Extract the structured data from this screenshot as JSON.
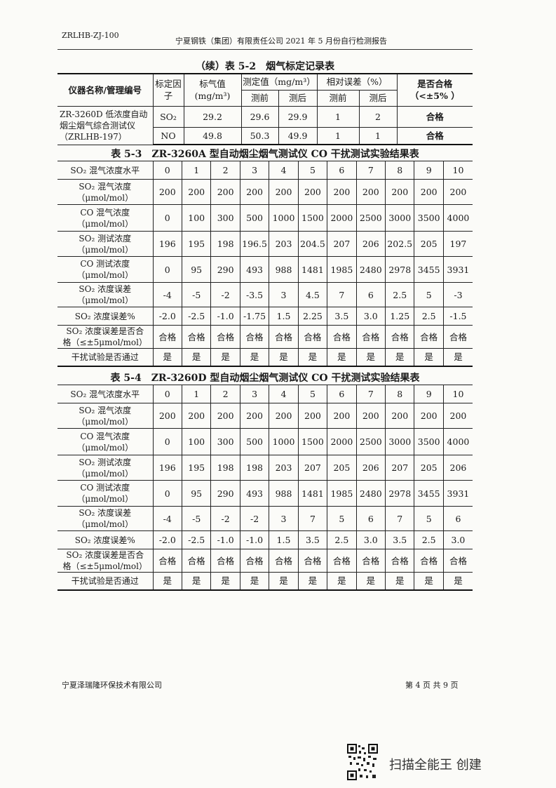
{
  "header": {
    "code": "ZRLHB-ZJ-100",
    "title": "宁夏钢铁（集团）有限责任公司 2021 年 5 月份自行检测报告"
  },
  "table52": {
    "title": "（续）表 5-2　烟气标定记录表",
    "headers": {
      "name": "仪器名称/管理编号",
      "factor": "标定因子",
      "std": "标气值",
      "std_unit": "(mg/m³)",
      "measured": "测定值（mg/m³）",
      "rel_err": "相对误差（%）",
      "pass": "是否合格",
      "pass_crit": "（<±5% ）",
      "before": "测前",
      "after": "测后"
    },
    "instrument": "ZR-3260D 低浓度自动烟尘烟气综合测试仪（ZRLHB-197）",
    "rows": [
      {
        "factor": "SO₂",
        "std": "29.2",
        "before": "29.6",
        "after": "29.9",
        "err_before": "1",
        "err_after": "2",
        "pass": "合格"
      },
      {
        "factor": "NO",
        "std": "49.8",
        "before": "50.3",
        "after": "49.9",
        "err_before": "1",
        "err_after": "1",
        "pass": "合格"
      }
    ]
  },
  "table53": {
    "title": "表 5-3　ZR-3260A 型自动烟尘烟气测试仪 CO 干扰测试实验结果表",
    "rows": [
      {
        "l1": "SO₂ 混气浓度水平",
        "l2": "",
        "values": [
          "0",
          "1",
          "2",
          "3",
          "4",
          "5",
          "6",
          "7",
          "8",
          "9",
          "10"
        ]
      },
      {
        "l1": "SO₂ 混气浓度",
        "l2": "（μmol/mol）",
        "values": [
          "200",
          "200",
          "200",
          "200",
          "200",
          "200",
          "200",
          "200",
          "200",
          "200",
          "200"
        ]
      },
      {
        "l1": "CO 混气浓度",
        "l2": "（μmol/mol）",
        "values": [
          "0",
          "100",
          "300",
          "500",
          "1000",
          "1500",
          "2000",
          "2500",
          "3000",
          "3500",
          "4000"
        ]
      },
      {
        "l1": "SO₂ 测试浓度",
        "l2": "（μmol/mol）",
        "values": [
          "196",
          "195",
          "198",
          "196.5",
          "203",
          "204.5",
          "207",
          "206",
          "202.5",
          "205",
          "197"
        ]
      },
      {
        "l1": "CO 测试浓度",
        "l2": "（μmol/mol）",
        "values": [
          "0",
          "95",
          "290",
          "493",
          "988",
          "1481",
          "1985",
          "2480",
          "2978",
          "3455",
          "3931"
        ]
      },
      {
        "l1": "SO₂ 浓度误差",
        "l2": "（μmol/mol）",
        "values": [
          "-4",
          "-5",
          "-2",
          "-3.5",
          "3",
          "4.5",
          "7",
          "6",
          "2.5",
          "5",
          "-3"
        ]
      },
      {
        "l1": "SO₂ 浓度误差%",
        "l2": "",
        "values": [
          "-2.0",
          "-2.5",
          "-1.0",
          "-1.75",
          "1.5",
          "2.25",
          "3.5",
          "3.0",
          "1.25",
          "2.5",
          "-1.5"
        ]
      },
      {
        "l1": "SO₂ 浓度误差是否合",
        "l2": "格（≤±5μmol/mol）",
        "values": [
          "合格",
          "合格",
          "合格",
          "合格",
          "合格",
          "合格",
          "合格",
          "合格",
          "合格",
          "合格",
          "合格"
        ]
      },
      {
        "l1": "干扰试验是否通过",
        "l2": "",
        "values": [
          "是",
          "是",
          "是",
          "是",
          "是",
          "是",
          "是",
          "是",
          "是",
          "是",
          "是"
        ]
      }
    ]
  },
  "table54": {
    "title": "表 5-4　ZR-3260D 型自动烟尘烟气测试仪 CO 干扰测试实验结果表",
    "rows": [
      {
        "l1": "SO₂ 混气浓度水平",
        "l2": "",
        "values": [
          "0",
          "1",
          "2",
          "3",
          "4",
          "5",
          "6",
          "7",
          "8",
          "9",
          "10"
        ]
      },
      {
        "l1": "SO₂ 混气浓度",
        "l2": "（μmol/mol）",
        "values": [
          "200",
          "200",
          "200",
          "200",
          "200",
          "200",
          "200",
          "200",
          "200",
          "200",
          "200"
        ]
      },
      {
        "l1": "CO 混气浓度",
        "l2": "（μmol/mol）",
        "values": [
          "0",
          "100",
          "300",
          "500",
          "1000",
          "1500",
          "2000",
          "2500",
          "3000",
          "3500",
          "4000"
        ]
      },
      {
        "l1": "SO₂ 测试浓度",
        "l2": "（μmol/mol）",
        "values": [
          "196",
          "195",
          "198",
          "198",
          "203",
          "207",
          "205",
          "206",
          "207",
          "205",
          "206"
        ]
      },
      {
        "l1": "CO 测试浓度",
        "l2": "（μmol/mol）",
        "values": [
          "0",
          "95",
          "290",
          "493",
          "988",
          "1481",
          "1985",
          "2480",
          "2978",
          "3455",
          "3931"
        ]
      },
      {
        "l1": "SO₂ 浓度误差",
        "l2": "（μmol/mol）",
        "values": [
          "-4",
          "-5",
          "-2",
          "-2",
          "3",
          "7",
          "5",
          "6",
          "7",
          "5",
          "6"
        ]
      },
      {
        "l1": "SO₂ 浓度误差%",
        "l2": "",
        "values": [
          "-2.0",
          "-2.5",
          "-1.0",
          "-1.0",
          "1.5",
          "3.5",
          "2.5",
          "3.0",
          "3.5",
          "2.5",
          "3.0"
        ]
      },
      {
        "l1": "SO₂ 浓度误差是否合",
        "l2": "格（≤±5μmol/mol）",
        "values": [
          "合格",
          "合格",
          "合格",
          "合格",
          "合格",
          "合格",
          "合格",
          "合格",
          "合格",
          "合格",
          "合格"
        ]
      },
      {
        "l1": "干扰试验是否通过",
        "l2": "",
        "values": [
          "是",
          "是",
          "是",
          "是",
          "是",
          "是",
          "是",
          "是",
          "是",
          "是",
          "是"
        ]
      }
    ]
  },
  "footer": {
    "company": "宁夏泽瑞隆环保技术有限公司",
    "page": "第 4 页 共 9 页"
  },
  "watermark": {
    "text": "扫描全能王 创建",
    "icon": "qr-code-icon"
  }
}
